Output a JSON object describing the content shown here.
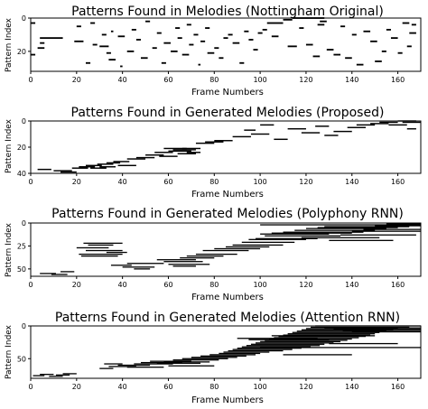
{
  "chart_data": [
    {
      "type": "heatmap",
      "title": "Patterns Found in Melodies (Nottingham Original)",
      "xlabel": "Frame Numbers",
      "ylabel": "Pattern Index",
      "xlim": [
        0,
        170
      ],
      "ylim": [
        32,
        0
      ],
      "xticks": [
        0,
        20,
        40,
        60,
        80,
        100,
        120,
        140,
        160
      ],
      "yticks": [
        0,
        20
      ],
      "cell_color": "#000000",
      "segments": [
        [
          0,
          2,
          3
        ],
        [
          3,
          6,
          18
        ],
        [
          0,
          2,
          22
        ],
        [
          4,
          14,
          12
        ],
        [
          4,
          6,
          15
        ],
        [
          19,
          23,
          14
        ],
        [
          20,
          22,
          5
        ],
        [
          24,
          26,
          27
        ],
        [
          26,
          28,
          3
        ],
        [
          27,
          29,
          16
        ],
        [
          30,
          34,
          17
        ],
        [
          31,
          33,
          10
        ],
        [
          33,
          35,
          21
        ],
        [
          34,
          37,
          25
        ],
        [
          35,
          36,
          8
        ],
        [
          38,
          41,
          11
        ],
        [
          39,
          40,
          29
        ],
        [
          42,
          45,
          20
        ],
        [
          44,
          46,
          7
        ],
        [
          46,
          48,
          13
        ],
        [
          48,
          51,
          24
        ],
        [
          50,
          52,
          2
        ],
        [
          53,
          55,
          18
        ],
        [
          55,
          57,
          9
        ],
        [
          57,
          59,
          27
        ],
        [
          58,
          61,
          15
        ],
        [
          61,
          64,
          20
        ],
        [
          63,
          65,
          6
        ],
        [
          64,
          66,
          12
        ],
        [
          66,
          69,
          22
        ],
        [
          68,
          70,
          4
        ],
        [
          69,
          71,
          16
        ],
        [
          71,
          73,
          10
        ],
        [
          73,
          74,
          28
        ],
        [
          74,
          76,
          14
        ],
        [
          76,
          78,
          6
        ],
        [
          77,
          80,
          21
        ],
        [
          80,
          82,
          18
        ],
        [
          82,
          84,
          24
        ],
        [
          84,
          86,
          12
        ],
        [
          86,
          88,
          10
        ],
        [
          88,
          91,
          15
        ],
        [
          91,
          93,
          27
        ],
        [
          93,
          95,
          8
        ],
        [
          95,
          97,
          13
        ],
        [
          97,
          99,
          19
        ],
        [
          99,
          101,
          9
        ],
        [
          101,
          103,
          7
        ],
        [
          103,
          110,
          3
        ],
        [
          105,
          108,
          11
        ],
        [
          110,
          114,
          1
        ],
        [
          112,
          116,
          17
        ],
        [
          114,
          128,
          0
        ],
        [
          117,
          119,
          6
        ],
        [
          120,
          123,
          16
        ],
        [
          123,
          126,
          23
        ],
        [
          125,
          128,
          4
        ],
        [
          126,
          129,
          2
        ],
        [
          129,
          132,
          19
        ],
        [
          132,
          135,
          22
        ],
        [
          135,
          137,
          5
        ],
        [
          137,
          140,
          24
        ],
        [
          140,
          142,
          10
        ],
        [
          142,
          145,
          28
        ],
        [
          145,
          148,
          8
        ],
        [
          148,
          151,
          14
        ],
        [
          150,
          153,
          26
        ],
        [
          153,
          155,
          20
        ],
        [
          155,
          157,
          7
        ],
        [
          157,
          160,
          12
        ],
        [
          160,
          162,
          21
        ],
        [
          162,
          165,
          3
        ],
        [
          164,
          166,
          17
        ],
        [
          165,
          168,
          9
        ],
        [
          166,
          168,
          4
        ]
      ]
    },
    {
      "type": "heatmap",
      "title": "Patterns Found in Generated Melodies (Proposed)",
      "xlabel": "Frame Numbers",
      "ylabel": "Pattern Index",
      "xlim": [
        0,
        170
      ],
      "ylim": [
        40,
        0
      ],
      "xticks": [
        0,
        20,
        40,
        60,
        80,
        100,
        120,
        140,
        160
      ],
      "yticks": [
        0,
        20,
        40
      ],
      "cell_color": "#000000",
      "segments": [
        [
          3,
          9,
          37
        ],
        [
          10,
          18,
          38
        ],
        [
          13,
          20,
          39
        ],
        [
          18,
          25,
          36
        ],
        [
          21,
          28,
          35
        ],
        [
          24,
          31,
          34
        ],
        [
          26,
          33,
          36
        ],
        [
          29,
          36,
          33
        ],
        [
          30,
          37,
          35
        ],
        [
          33,
          39,
          32
        ],
        [
          36,
          43,
          31
        ],
        [
          38,
          46,
          34
        ],
        [
          42,
          50,
          29
        ],
        [
          46,
          54,
          28
        ],
        [
          50,
          58,
          26
        ],
        [
          54,
          62,
          24
        ],
        [
          56,
          64,
          27
        ],
        [
          58,
          68,
          21
        ],
        [
          60,
          70,
          23
        ],
        [
          62,
          72,
          22
        ],
        [
          64,
          72,
          25
        ],
        [
          66,
          74,
          21
        ],
        [
          68,
          74,
          24
        ],
        [
          72,
          80,
          17
        ],
        [
          76,
          84,
          16
        ],
        [
          80,
          88,
          15
        ],
        [
          88,
          96,
          12
        ],
        [
          93,
          98,
          7
        ],
        [
          96,
          104,
          10
        ],
        [
          100,
          106,
          3
        ],
        [
          106,
          112,
          14
        ],
        [
          112,
          120,
          6
        ],
        [
          118,
          126,
          9
        ],
        [
          124,
          130,
          4
        ],
        [
          128,
          134,
          11
        ],
        [
          132,
          140,
          8
        ],
        [
          138,
          146,
          5
        ],
        [
          142,
          150,
          3
        ],
        [
          148,
          156,
          2
        ],
        [
          152,
          160,
          1
        ],
        [
          156,
          164,
          3
        ],
        [
          160,
          168,
          0
        ],
        [
          162,
          170,
          1
        ],
        [
          164,
          168,
          6
        ]
      ]
    },
    {
      "type": "heatmap",
      "title": "Patterns Found in Generated Melodies (Polyphony RNN)",
      "xlabel": "Frame Numbers",
      "ylabel": "Pattern Index",
      "xlim": [
        0,
        170
      ],
      "ylim": [
        58,
        0
      ],
      "xticks": [
        0,
        20,
        40,
        60,
        80,
        100,
        120,
        140,
        160
      ],
      "yticks": [
        0,
        25,
        50
      ],
      "cell_color": "#000000",
      "segments": [
        [
          4,
          11,
          55
        ],
        [
          9,
          16,
          56
        ],
        [
          13,
          19,
          53
        ],
        [
          20,
          34,
          27
        ],
        [
          21,
          40,
          34
        ],
        [
          22,
          38,
          36
        ],
        [
          24,
          40,
          30
        ],
        [
          25,
          36,
          24
        ],
        [
          23,
          40,
          22
        ],
        [
          33,
          42,
          32
        ],
        [
          35,
          44,
          46
        ],
        [
          40,
          54,
          48
        ],
        [
          42,
          58,
          44
        ],
        [
          45,
          52,
          50
        ],
        [
          55,
          72,
          40
        ],
        [
          58,
          75,
          42
        ],
        [
          60,
          78,
          45
        ],
        [
          62,
          72,
          47
        ],
        [
          65,
          80,
          38
        ],
        [
          68,
          84,
          36
        ],
        [
          72,
          90,
          34
        ],
        [
          75,
          95,
          30
        ],
        [
          80,
          100,
          28
        ],
        [
          85,
          104,
          26
        ],
        [
          88,
          110,
          24
        ],
        [
          92,
          115,
          21
        ],
        [
          95,
          120,
          18
        ],
        [
          98,
          125,
          17
        ],
        [
          100,
          130,
          12
        ],
        [
          102,
          135,
          14
        ],
        [
          105,
          140,
          11
        ],
        [
          110,
          145,
          10
        ],
        [
          115,
          150,
          8
        ],
        [
          118,
          152,
          16
        ],
        [
          120,
          155,
          6
        ],
        [
          125,
          160,
          5
        ],
        [
          128,
          165,
          4
        ],
        [
          130,
          158,
          19
        ],
        [
          100,
          170,
          2
        ],
        [
          135,
          168,
          13
        ],
        [
          140,
          170,
          9
        ],
        [
          145,
          170,
          7
        ],
        [
          150,
          170,
          3
        ],
        [
          155,
          170,
          1
        ]
      ]
    },
    {
      "type": "heatmap",
      "title": "Patterns Found in Generated Melodies (Attention RNN)",
      "xlabel": "Frame Numbers",
      "ylabel": "Pattern Index",
      "xlim": [
        0,
        170
      ],
      "ylim": [
        80,
        0
      ],
      "xticks": [
        0,
        20,
        40,
        60,
        80,
        100,
        120,
        140,
        160
      ],
      "yticks": [
        0,
        50
      ],
      "cell_color": "#000000",
      "segments": [
        [
          1,
          6,
          76
        ],
        [
          4,
          10,
          74
        ],
        [
          8,
          14,
          77
        ],
        [
          11,
          17,
          75
        ],
        [
          14,
          20,
          73
        ],
        [
          30,
          36,
          65
        ],
        [
          32,
          40,
          58
        ],
        [
          34,
          46,
          62
        ],
        [
          38,
          52,
          60
        ],
        [
          42,
          58,
          63
        ],
        [
          45,
          62,
          58
        ],
        [
          48,
          66,
          56
        ],
        [
          52,
          70,
          54
        ],
        [
          55,
          74,
          57
        ],
        [
          58,
          78,
          55
        ],
        [
          62,
          82,
          52
        ],
        [
          66,
          86,
          50
        ],
        [
          70,
          90,
          48
        ],
        [
          74,
          94,
          46
        ],
        [
          78,
          98,
          44
        ],
        [
          82,
          100,
          42
        ],
        [
          84,
          104,
          40
        ],
        [
          86,
          110,
          38
        ],
        [
          88,
          114,
          36
        ],
        [
          90,
          118,
          34
        ],
        [
          92,
          122,
          32
        ],
        [
          94,
          126,
          30
        ],
        [
          96,
          128,
          28
        ],
        [
          98,
          132,
          26
        ],
        [
          100,
          135,
          24
        ],
        [
          102,
          138,
          22
        ],
        [
          104,
          140,
          20
        ],
        [
          106,
          143,
          18
        ],
        [
          108,
          146,
          16
        ],
        [
          110,
          148,
          14
        ],
        [
          112,
          150,
          12
        ],
        [
          114,
          152,
          10
        ],
        [
          116,
          155,
          8
        ],
        [
          118,
          158,
          6
        ],
        [
          120,
          160,
          4
        ],
        [
          122,
          165,
          2
        ],
        [
          124,
          170,
          0
        ],
        [
          128,
          170,
          3
        ],
        [
          132,
          170,
          5
        ],
        [
          136,
          170,
          7
        ],
        [
          140,
          170,
          9
        ],
        [
          100,
          170,
          33
        ],
        [
          90,
          125,
          19
        ],
        [
          95,
          130,
          21
        ],
        [
          105,
          150,
          15
        ],
        [
          60,
          80,
          61
        ],
        [
          110,
          140,
          44
        ],
        [
          130,
          160,
          27
        ]
      ]
    }
  ]
}
